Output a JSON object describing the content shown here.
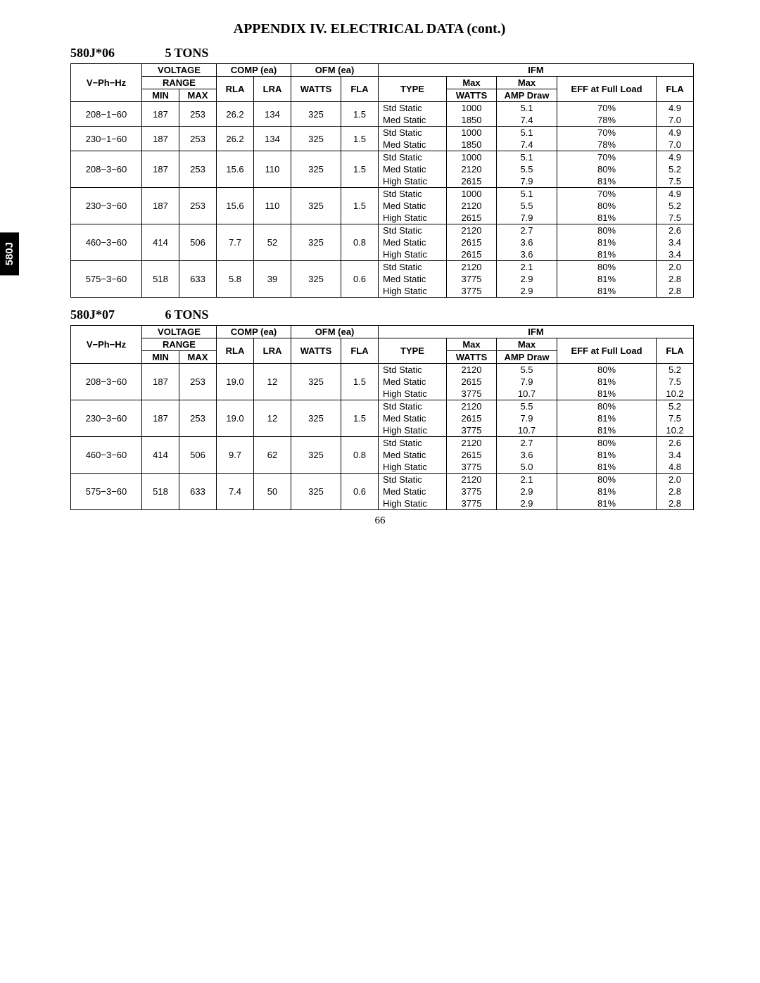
{
  "page_title": "APPENDIX IV. ELECTRICAL DATA (cont.)",
  "side_tab": "580J",
  "page_number": "66",
  "headers": {
    "vphhz": "V−Ph−Hz",
    "voltage": "VOLTAGE",
    "range": "RANGE",
    "min": "MIN",
    "max": "MAX",
    "comp": "COMP (ea)",
    "rla": "RLA",
    "lra": "LRA",
    "ofm": "OFM (ea)",
    "watts": "WATTS",
    "fla": "FLA",
    "ifm": "IFM",
    "type": "TYPE",
    "maxwatts1": "Max",
    "maxwatts2": "WATTS",
    "ampdraw1": "Max",
    "ampdraw2": "AMP Draw",
    "eff": "EFF at Full Load"
  },
  "sections": [
    {
      "model": "580J*06",
      "tons": "5 TONS",
      "rows": [
        {
          "vph": "208−1−60",
          "min": "187",
          "max": "253",
          "rla": "26.2",
          "lra": "134",
          "watts": "325",
          "fla": "1.5",
          "sub": [
            {
              "type": "Std Static",
              "mw": "1000",
              "amp": "5.1",
              "eff": "70%",
              "fla2": "4.9"
            },
            {
              "type": "Med Static",
              "mw": "1850",
              "amp": "7.4",
              "eff": "78%",
              "fla2": "7.0"
            }
          ]
        },
        {
          "vph": "230−1−60",
          "min": "187",
          "max": "253",
          "rla": "26.2",
          "lra": "134",
          "watts": "325",
          "fla": "1.5",
          "sub": [
            {
              "type": "Std Static",
              "mw": "1000",
              "amp": "5.1",
              "eff": "70%",
              "fla2": "4.9"
            },
            {
              "type": "Med Static",
              "mw": "1850",
              "amp": "7.4",
              "eff": "78%",
              "fla2": "7.0"
            }
          ]
        },
        {
          "vph": "208−3−60",
          "min": "187",
          "max": "253",
          "rla": "15.6",
          "lra": "110",
          "watts": "325",
          "fla": "1.5",
          "sub": [
            {
              "type": "Std Static",
              "mw": "1000",
              "amp": "5.1",
              "eff": "70%",
              "fla2": "4.9"
            },
            {
              "type": "Med Static",
              "mw": "2120",
              "amp": "5.5",
              "eff": "80%",
              "fla2": "5.2"
            },
            {
              "type": "High Static",
              "mw": "2615",
              "amp": "7.9",
              "eff": "81%",
              "fla2": "7.5"
            }
          ]
        },
        {
          "vph": "230−3−60",
          "min": "187",
          "max": "253",
          "rla": "15.6",
          "lra": "110",
          "watts": "325",
          "fla": "1.5",
          "sub": [
            {
              "type": "Std Static",
              "mw": "1000",
              "amp": "5.1",
              "eff": "70%",
              "fla2": "4.9"
            },
            {
              "type": "Med Static",
              "mw": "2120",
              "amp": "5.5",
              "eff": "80%",
              "fla2": "5.2"
            },
            {
              "type": "High Static",
              "mw": "2615",
              "amp": "7.9",
              "eff": "81%",
              "fla2": "7.5"
            }
          ]
        },
        {
          "vph": "460−3−60",
          "min": "414",
          "max": "506",
          "rla": "7.7",
          "lra": "52",
          "watts": "325",
          "fla": "0.8",
          "sub": [
            {
              "type": "Std Static",
              "mw": "2120",
              "amp": "2.7",
              "eff": "80%",
              "fla2": "2.6"
            },
            {
              "type": "Med Static",
              "mw": "2615",
              "amp": "3.6",
              "eff": "81%",
              "fla2": "3.4"
            },
            {
              "type": "High Static",
              "mw": "2615",
              "amp": "3.6",
              "eff": "81%",
              "fla2": "3.4"
            }
          ]
        },
        {
          "vph": "575−3−60",
          "min": "518",
          "max": "633",
          "rla": "5.8",
          "lra": "39",
          "watts": "325",
          "fla": "0.6",
          "sub": [
            {
              "type": "Std Static",
              "mw": "2120",
              "amp": "2.1",
              "eff": "80%",
              "fla2": "2.0"
            },
            {
              "type": "Med Static",
              "mw": "3775",
              "amp": "2.9",
              "eff": "81%",
              "fla2": "2.8"
            },
            {
              "type": "High Static",
              "mw": "3775",
              "amp": "2.9",
              "eff": "81%",
              "fla2": "2.8"
            }
          ]
        }
      ]
    },
    {
      "model": "580J*07",
      "tons": "6 TONS",
      "rows": [
        {
          "vph": "208−3−60",
          "min": "187",
          "max": "253",
          "rla": "19.0",
          "lra": "12",
          "watts": "325",
          "fla": "1.5",
          "sub": [
            {
              "type": "Std Static",
              "mw": "2120",
              "amp": "5.5",
              "eff": "80%",
              "fla2": "5.2"
            },
            {
              "type": "Med Static",
              "mw": "2615",
              "amp": "7.9",
              "eff": "81%",
              "fla2": "7.5"
            },
            {
              "type": "High Static",
              "mw": "3775",
              "amp": "10.7",
              "eff": "81%",
              "fla2": "10.2"
            }
          ]
        },
        {
          "vph": "230−3−60",
          "min": "187",
          "max": "253",
          "rla": "19.0",
          "lra": "12",
          "watts": "325",
          "fla": "1.5",
          "sub": [
            {
              "type": "Std Static",
              "mw": "2120",
              "amp": "5.5",
              "eff": "80%",
              "fla2": "5.2"
            },
            {
              "type": "Med Static",
              "mw": "2615",
              "amp": "7.9",
              "eff": "81%",
              "fla2": "7.5"
            },
            {
              "type": "High Static",
              "mw": "3775",
              "amp": "10.7",
              "eff": "81%",
              "fla2": "10.2"
            }
          ]
        },
        {
          "vph": "460−3−60",
          "min": "414",
          "max": "506",
          "rla": "9.7",
          "lra": "62",
          "watts": "325",
          "fla": "0.8",
          "sub": [
            {
              "type": "Std Static",
              "mw": "2120",
              "amp": "2.7",
              "eff": "80%",
              "fla2": "2.6"
            },
            {
              "type": "Med Static",
              "mw": "2615",
              "amp": "3.6",
              "eff": "81%",
              "fla2": "3.4"
            },
            {
              "type": "High Static",
              "mw": "3775",
              "amp": "5.0",
              "eff": "81%",
              "fla2": "4.8"
            }
          ]
        },
        {
          "vph": "575−3−60",
          "min": "518",
          "max": "633",
          "rla": "7.4",
          "lra": "50",
          "watts": "325",
          "fla": "0.6",
          "sub": [
            {
              "type": "Std Static",
              "mw": "2120",
              "amp": "2.1",
              "eff": "80%",
              "fla2": "2.0"
            },
            {
              "type": "Med Static",
              "mw": "3775",
              "amp": "2.9",
              "eff": "81%",
              "fla2": "2.8"
            },
            {
              "type": "High Static",
              "mw": "3775",
              "amp": "2.9",
              "eff": "81%",
              "fla2": "2.8"
            }
          ]
        }
      ]
    }
  ]
}
